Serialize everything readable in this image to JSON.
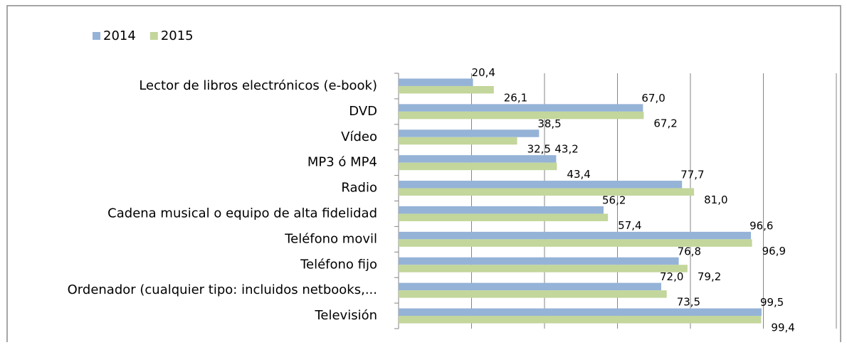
{
  "chart_data": {
    "type": "barh",
    "categories": [
      "Lector de libros electrónicos (e-book)",
      "DVD",
      "Vídeo",
      "MP3 ó MP4",
      "Radio",
      "Cadena musical o equipo de alta fidelidad",
      "Teléfono movil",
      "Teléfono fijo",
      "Ordenador (cualquier tipo: incluidos netbooks,...",
      "Televisión"
    ],
    "series": [
      {
        "name": "2014",
        "color": "#95b3d7",
        "values": [
          20.4,
          67.0,
          38.5,
          43.2,
          77.7,
          56.2,
          96.6,
          76.8,
          72.0,
          99.5
        ],
        "value_labels": [
          "20,4",
          "67,0",
          "38,5",
          "43,2",
          "77,7",
          "56,2",
          "96,6",
          "76,8",
          "72,0",
          "99,5"
        ]
      },
      {
        "name": "2015",
        "color": "#c3d69b",
        "values": [
          26.1,
          67.2,
          32.5,
          43.4,
          81.0,
          57.4,
          96.9,
          79.2,
          73.5,
          99.4
        ],
        "value_labels": [
          "26,1",
          "67,2",
          "32,5",
          "43,4",
          "81,0",
          "57,4",
          "96,9",
          "79,2",
          "73,5",
          "99,4"
        ]
      }
    ],
    "xlim": [
      0,
      120
    ],
    "xticks": [
      0,
      20,
      40,
      60,
      80,
      100,
      120
    ],
    "grid": true,
    "legend": "top-left"
  }
}
